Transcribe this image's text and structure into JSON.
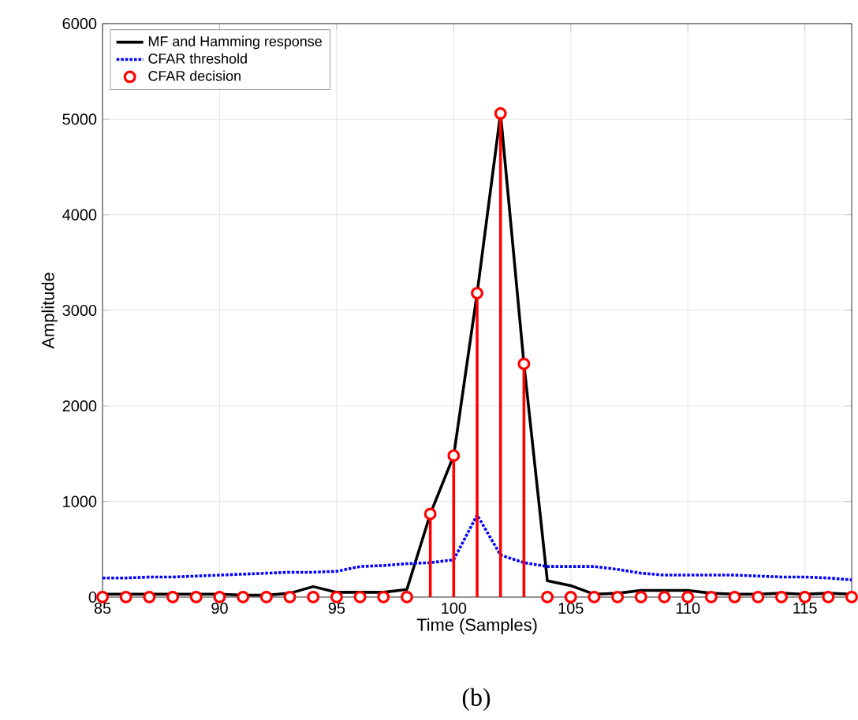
{
  "chart_data": {
    "type": "line",
    "xlabel": "Time (Samples)",
    "ylabel": "Amplitude",
    "annotations": [
      "(b)"
    ],
    "x": [
      85,
      86,
      87,
      88,
      89,
      90,
      91,
      92,
      93,
      94,
      95,
      96,
      97,
      98,
      99,
      100,
      101,
      102,
      103,
      104,
      105,
      106,
      107,
      108,
      109,
      110,
      111,
      112,
      113,
      114,
      115,
      116,
      117
    ],
    "series": [
      {
        "name": "MF and Hamming response",
        "color": "#000000",
        "line_style": "solid",
        "marker": "none",
        "values": [
          30,
          30,
          30,
          30,
          30,
          30,
          20,
          20,
          40,
          110,
          50,
          50,
          50,
          80,
          870,
          1480,
          3180,
          5060,
          2440,
          170,
          120,
          30,
          40,
          70,
          70,
          70,
          40,
          30,
          30,
          40,
          30,
          40,
          30
        ]
      },
      {
        "name": "CFAR threshold",
        "color": "#0000ff",
        "line_style": "dotted",
        "marker": "none",
        "values": [
          200,
          200,
          210,
          210,
          220,
          230,
          240,
          250,
          260,
          260,
          270,
          320,
          330,
          350,
          360,
          390,
          860,
          440,
          360,
          320,
          320,
          320,
          290,
          250,
          230,
          230,
          230,
          230,
          220,
          210,
          210,
          200,
          180
        ]
      },
      {
        "name": "CFAR decision",
        "type": "lollipop",
        "color": "#ff0000",
        "line_style": "solid",
        "marker": "circle",
        "values": [
          0,
          0,
          0,
          0,
          0,
          0,
          0,
          0,
          0,
          0,
          0,
          0,
          0,
          0,
          870,
          1480,
          3180,
          5060,
          2440,
          0,
          0,
          0,
          0,
          0,
          0,
          0,
          0,
          0,
          0,
          0,
          0,
          0,
          0
        ]
      }
    ],
    "xlim": [
      85,
      117
    ],
    "ylim": [
      0,
      6000
    ],
    "xticks": [
      85,
      90,
      95,
      100,
      105,
      110,
      115
    ],
    "yticks": [
      0,
      1000,
      2000,
      3000,
      4000,
      5000,
      6000
    ],
    "grid": true,
    "legend": "top left"
  }
}
